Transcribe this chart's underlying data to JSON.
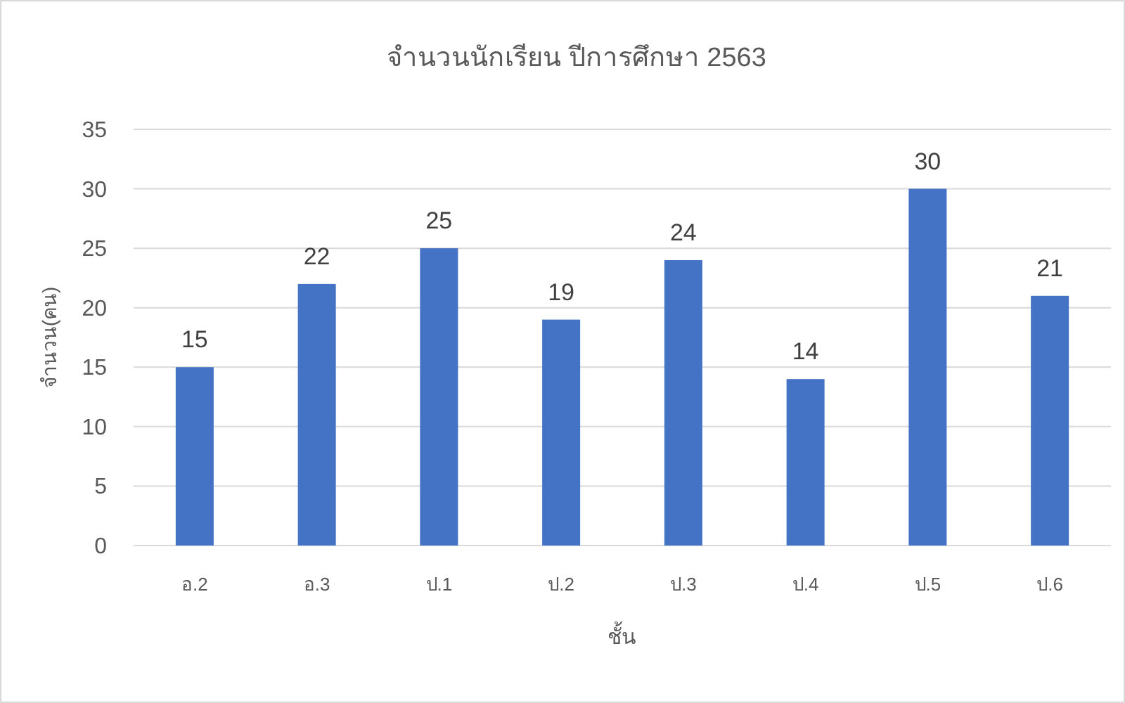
{
  "chart_data": {
    "type": "bar",
    "title": "จำนวนนักเรียน ปีการศึกษา 2563",
    "xlabel": "ชั้น",
    "ylabel": "จำนวน(คน)",
    "categories": [
      "อ.2",
      "อ.3",
      "ป.1",
      "ป.2",
      "ป.3",
      "ป.4",
      "ป.5",
      "ป.6"
    ],
    "values": [
      15,
      22,
      25,
      19,
      24,
      14,
      30,
      21
    ],
    "color": "#4472c4",
    "ylim": [
      0,
      35
    ],
    "yticks": [
      0,
      5,
      10,
      15,
      20,
      25,
      30,
      35
    ],
    "grid": "y",
    "data_labels": true
  }
}
